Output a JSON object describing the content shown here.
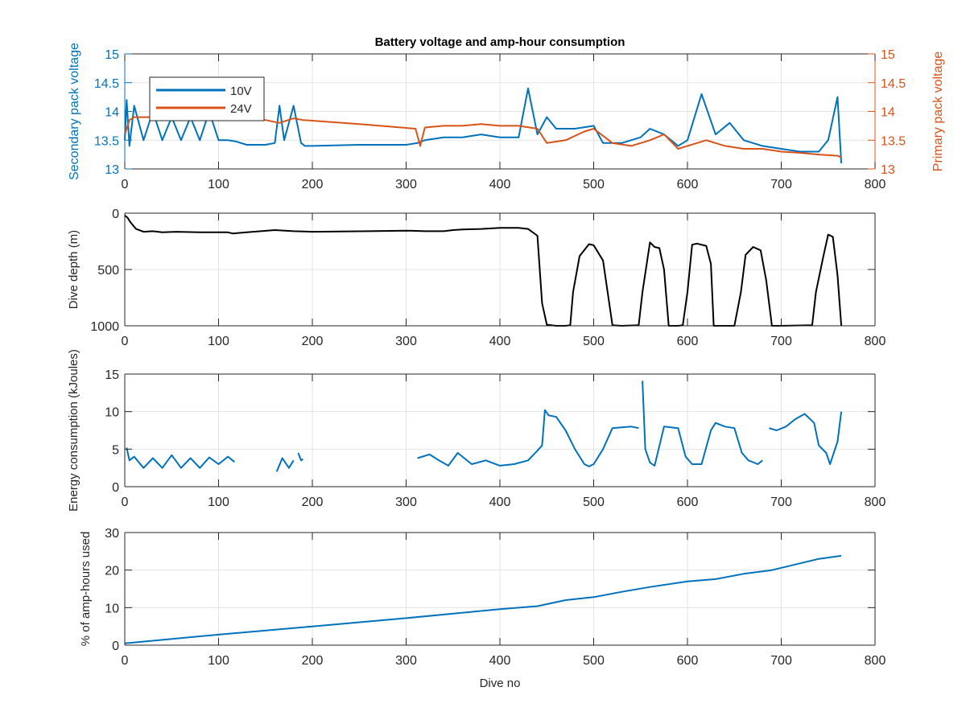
{
  "chart_data": [
    {
      "id": "voltage",
      "type": "line",
      "title": "Battery voltage and amp-hour consumption",
      "xlabel": "",
      "ylabel": "Secondary pack voltage",
      "ylabel_right": "Primary pack voltage",
      "xlim": [
        0,
        800
      ],
      "ylim": [
        13,
        15
      ],
      "ylim_right": [
        13,
        15
      ],
      "xticks": [
        0,
        100,
        200,
        300,
        400,
        500,
        600,
        700,
        800
      ],
      "yticks": [
        13,
        13.5,
        14,
        14.5,
        15
      ],
      "yticks_right": [
        13,
        13.5,
        14,
        14.5,
        15
      ],
      "grid": true,
      "legend": {
        "placement": "top-left",
        "entries": [
          "10V",
          "24V"
        ]
      },
      "colors": {
        "left_axis": "#0072BD",
        "right_axis": "#D95319"
      },
      "series": [
        {
          "name": "10V",
          "axis": "left",
          "color": "#0072BD",
          "x": [
            0,
            2,
            5,
            10,
            20,
            30,
            40,
            50,
            60,
            70,
            80,
            90,
            100,
            110,
            118,
            130,
            150,
            160,
            165,
            170,
            180,
            188,
            192,
            200,
            250,
            300,
            312,
            320,
            340,
            360,
            380,
            400,
            420,
            430,
            440,
            450,
            460,
            480,
            500,
            510,
            530,
            550,
            560,
            575,
            590,
            600,
            615,
            630,
            645,
            660,
            680,
            700,
            720,
            740,
            750,
            760,
            764
          ],
          "y": [
            13.5,
            14.2,
            13.4,
            14.1,
            13.5,
            14.0,
            13.5,
            13.9,
            13.5,
            13.9,
            13.5,
            14.0,
            13.5,
            13.5,
            13.48,
            13.42,
            13.42,
            13.45,
            14.1,
            13.5,
            14.1,
            13.45,
            13.4,
            13.4,
            13.42,
            13.42,
            13.45,
            13.5,
            13.55,
            13.55,
            13.6,
            13.55,
            13.55,
            14.4,
            13.6,
            13.9,
            13.7,
            13.7,
            13.75,
            13.45,
            13.45,
            13.55,
            13.7,
            13.6,
            13.4,
            13.5,
            14.3,
            13.6,
            13.8,
            13.5,
            13.4,
            13.35,
            13.3,
            13.3,
            13.5,
            14.25,
            13.1
          ]
        },
        {
          "name": "24V",
          "axis": "right",
          "color": "#D95319",
          "x": [
            0,
            5,
            10,
            20,
            50,
            100,
            150,
            165,
            180,
            190,
            250,
            310,
            315,
            320,
            340,
            360,
            380,
            400,
            420,
            440,
            450,
            470,
            490,
            500,
            520,
            540,
            560,
            575,
            590,
            600,
            620,
            640,
            660,
            680,
            700,
            720,
            740,
            760,
            764
          ],
          "y": [
            13.6,
            13.85,
            13.9,
            13.9,
            13.9,
            13.88,
            13.85,
            13.8,
            13.88,
            13.85,
            13.78,
            13.7,
            13.4,
            13.72,
            13.75,
            13.75,
            13.78,
            13.75,
            13.75,
            13.7,
            13.45,
            13.5,
            13.65,
            13.7,
            13.45,
            13.4,
            13.5,
            13.6,
            13.35,
            13.4,
            13.5,
            13.4,
            13.35,
            13.35,
            13.3,
            13.28,
            13.25,
            13.23,
            13.2
          ]
        }
      ]
    },
    {
      "id": "depth",
      "type": "line",
      "xlabel": "",
      "ylabel": "Dive depth (m)",
      "xlim": [
        0,
        800
      ],
      "ylim": [
        0,
        1000
      ],
      "y_reversed": true,
      "xticks": [
        0,
        100,
        200,
        300,
        400,
        500,
        600,
        700,
        800
      ],
      "yticks": [
        0,
        500,
        1000
      ],
      "grid": true,
      "series": [
        {
          "name": "depth",
          "color": "#000000",
          "x": [
            0,
            3,
            6,
            12,
            20,
            30,
            40,
            55,
            80,
            110,
            115,
            130,
            160,
            180,
            200,
            260,
            300,
            320,
            340,
            350,
            360,
            380,
            400,
            420,
            430,
            435,
            440,
            445,
            450,
            460,
            470,
            475,
            478,
            485,
            495,
            500,
            510,
            520,
            530,
            548,
            552,
            560,
            565,
            570,
            575,
            580,
            590,
            595,
            600,
            605,
            610,
            620,
            625,
            628,
            635,
            650,
            657,
            662,
            670,
            678,
            684,
            690,
            700,
            733,
            737,
            745,
            750,
            755,
            760,
            764
          ],
          "y": [
            20,
            40,
            80,
            140,
            165,
            160,
            170,
            165,
            170,
            170,
            180,
            170,
            150,
            160,
            165,
            160,
            155,
            160,
            160,
            150,
            145,
            140,
            130,
            130,
            140,
            170,
            200,
            800,
            990,
            1000,
            1000,
            995,
            700,
            380,
            275,
            285,
            420,
            995,
            1000,
            995,
            700,
            260,
            300,
            310,
            500,
            1000,
            1000,
            995,
            700,
            280,
            270,
            290,
            450,
            1000,
            1000,
            1000,
            700,
            370,
            300,
            330,
            600,
            1000,
            1000,
            995,
            700,
            380,
            190,
            210,
            550,
            1000
          ]
        }
      ]
    },
    {
      "id": "energy",
      "type": "line",
      "xlabel": "",
      "ylabel": "Energy consumption (kJoules)",
      "xlim": [
        0,
        800
      ],
      "ylim": [
        0,
        15
      ],
      "xticks": [
        0,
        100,
        200,
        300,
        400,
        500,
        600,
        700,
        800
      ],
      "yticks": [
        0,
        5,
        10,
        15
      ],
      "grid": true,
      "series": [
        {
          "name": "energy",
          "color": "#0072BD",
          "segments": [
            {
              "x": [
                2,
                5,
                10,
                20,
                30,
                40,
                50,
                60,
                70,
                80,
                90,
                100,
                110,
                117
              ],
              "y": [
                5.2,
                3.5,
                4.0,
                2.5,
                3.8,
                2.5,
                4.2,
                2.5,
                3.8,
                2.5,
                3.9,
                3.0,
                4.0,
                3.3
              ]
            },
            {
              "x": [
                162,
                168,
                175,
                180
              ],
              "y": [
                2.0,
                3.8,
                2.5,
                3.5
              ]
            },
            {
              "x": [
                185,
                188,
                190
              ],
              "y": [
                4.5,
                3.5,
                3.7
              ]
            },
            {
              "x": [
                312,
                325,
                335,
                345,
                355,
                370,
                385,
                400,
                415,
                430,
                440,
                445,
                448,
                452,
                460,
                470,
                480,
                490,
                495,
                500,
                510,
                520,
                540,
                548
              ],
              "y": [
                3.8,
                4.3,
                3.5,
                2.8,
                4.5,
                3.0,
                3.5,
                2.8,
                3.0,
                3.5,
                4.8,
                5.5,
                10.2,
                9.5,
                9.3,
                7.5,
                5.0,
                3.0,
                2.7,
                3.0,
                5.0,
                7.8,
                8.0,
                7.8
              ]
            },
            {
              "x": [
                552,
                555,
                560,
                565,
                575,
                590,
                598,
                605,
                615,
                625,
                630,
                640,
                650,
                658,
                665,
                675,
                680
              ],
              "y": [
                14.1,
                5.0,
                3.2,
                2.8,
                8.0,
                7.8,
                4.0,
                3.0,
                3.0,
                7.5,
                8.5,
                8.0,
                7.8,
                4.5,
                3.5,
                3.0,
                3.5
              ]
            },
            {
              "x": [
                687,
                695,
                705,
                715,
                725,
                735,
                740,
                748,
                752,
                760,
                764
              ],
              "y": [
                7.8,
                7.5,
                8.0,
                9.0,
                9.7,
                8.5,
                5.5,
                4.5,
                3.0,
                6.0,
                10.0
              ]
            }
          ]
        }
      ]
    },
    {
      "id": "amphours",
      "type": "line",
      "xlabel": "Dive no",
      "ylabel": "% of amp-hours used",
      "xlim": [
        0,
        800
      ],
      "ylim": [
        0,
        30
      ],
      "xticks": [
        0,
        100,
        200,
        300,
        400,
        500,
        600,
        700,
        800
      ],
      "yticks": [
        0,
        10,
        20,
        30
      ],
      "grid": true,
      "series": [
        {
          "name": "amp-hours",
          "color": "#0072BD",
          "x": [
            0,
            100,
            200,
            300,
            400,
            440,
            470,
            500,
            530,
            560,
            600,
            630,
            660,
            690,
            720,
            740,
            764
          ],
          "y": [
            0.5,
            2.8,
            5.0,
            7.2,
            9.6,
            10.4,
            12.0,
            12.8,
            14.2,
            15.5,
            17.0,
            17.6,
            19.0,
            20.0,
            21.8,
            23.0,
            23.8
          ]
        }
      ]
    }
  ]
}
